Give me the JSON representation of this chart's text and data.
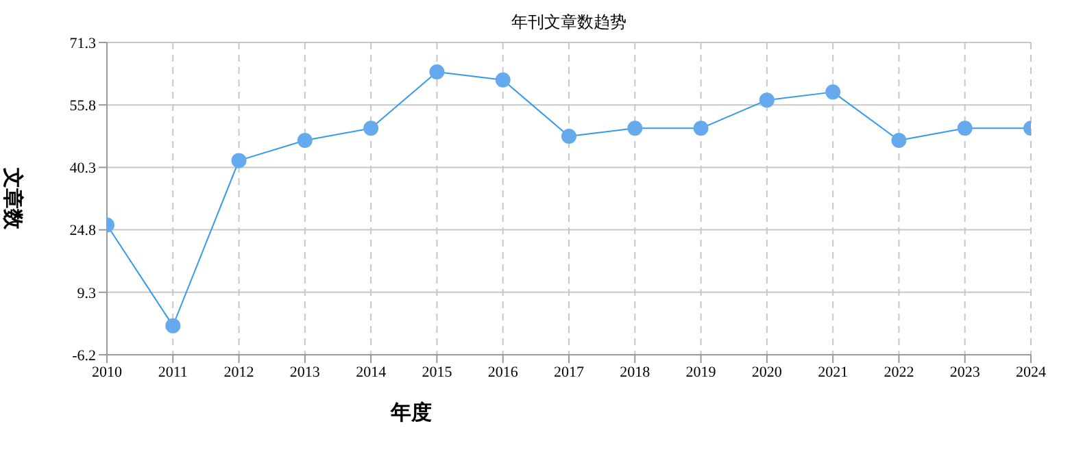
{
  "chart_data": {
    "type": "line",
    "title": "年刊文章数趋势",
    "xlabel": "年度",
    "ylabel": "文章数",
    "categories": [
      "2010",
      "2011",
      "2012",
      "2013",
      "2014",
      "2015",
      "2016",
      "2017",
      "2018",
      "2019",
      "2020",
      "2021",
      "2022",
      "2023",
      "2024"
    ],
    "series": [
      {
        "color": "#3399ee",
        "values": [
          26,
          1,
          42,
          47,
          50,
          64,
          62,
          48,
          50,
          50,
          57,
          59,
          47,
          50,
          50
        ]
      }
    ],
    "ylim": [
      -6.2,
      71.3
    ],
    "yticks": [
      -6.2,
      9.3,
      24.8,
      40.3,
      55.8,
      71.3
    ],
    "grid": true,
    "legend": false,
    "marker": "circle",
    "line_style": "solid"
  }
}
